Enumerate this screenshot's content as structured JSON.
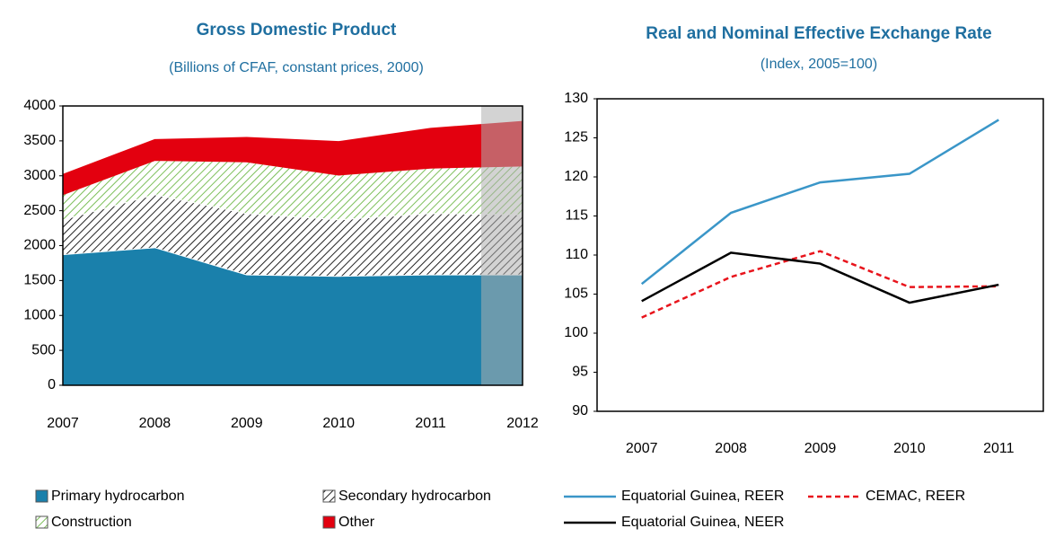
{
  "chart_data": [
    {
      "type": "area",
      "stacked": true,
      "title": "Gross Domestic Product",
      "subtitle": "(Billions of CFAF, constant prices, 2000)",
      "categories": [
        "2007",
        "2008",
        "2009",
        "2010",
        "2011",
        "2012"
      ],
      "series": [
        {
          "name": "Primary hydrocarbon",
          "color": "#1a80ab",
          "pattern": "solid",
          "values": [
            1870,
            1970,
            1580,
            1560,
            1580,
            1580
          ]
        },
        {
          "name": "Secondary hydrocarbon",
          "color": "#222222",
          "pattern": "hatch",
          "values": [
            500,
            760,
            880,
            810,
            880,
            860
          ]
        },
        {
          "name": "Construction",
          "color": "#7cbf5a",
          "pattern": "hatch",
          "values": [
            360,
            490,
            740,
            640,
            650,
            700
          ]
        },
        {
          "name": "Other",
          "color": "#e3000f",
          "pattern": "solid",
          "values": [
            290,
            300,
            350,
            480,
            570,
            640
          ]
        }
      ],
      "ylim": [
        0,
        4000
      ],
      "yticks": [
        0,
        500,
        1000,
        1500,
        2000,
        2500,
        3000,
        3500,
        4000
      ],
      "grid": false,
      "legend": "bottom"
    },
    {
      "type": "line",
      "title": "Real and Nominal Effective Exchange Rate",
      "subtitle": "(Index, 2005=100)",
      "categories": [
        "2007",
        "2008",
        "2009",
        "2010",
        "2011"
      ],
      "series": [
        {
          "name": "Equatorial Guinea, REER",
          "color": "#3a96c8",
          "dash": "solid",
          "values": [
            106.3,
            115.4,
            119.3,
            120.4,
            127.3
          ]
        },
        {
          "name": "CEMAC, REER",
          "color": "#e8141c",
          "dash": "dashed",
          "values": [
            102.0,
            107.2,
            110.5,
            105.9,
            106.0
          ]
        },
        {
          "name": "Equatorial Guinea, NEER",
          "color": "#000000",
          "dash": "solid",
          "values": [
            104.1,
            110.3,
            108.9,
            103.9,
            106.2
          ]
        }
      ],
      "ylim": [
        90,
        130
      ],
      "yticks": [
        90,
        95,
        100,
        105,
        110,
        115,
        120,
        125,
        130
      ],
      "grid": false,
      "legend": "bottom"
    }
  ]
}
